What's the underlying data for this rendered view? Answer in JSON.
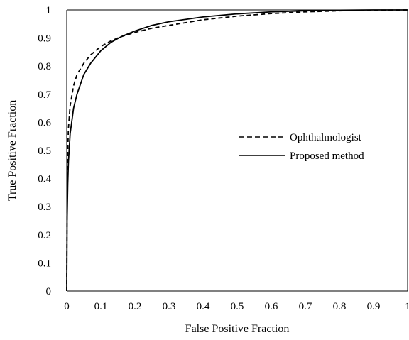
{
  "chart_data": {
    "type": "line",
    "title": "",
    "xlabel": "False Positive Fraction",
    "ylabel": "True Positive Fraction",
    "xlim": [
      0,
      1
    ],
    "ylim": [
      0,
      1
    ],
    "xticks": [
      "0",
      "0.1",
      "0.2",
      "0.3",
      "0.4",
      "0.5",
      "0.6",
      "0.7",
      "0.8",
      "0.9",
      "1"
    ],
    "yticks": [
      "0",
      "0.1",
      "0.2",
      "0.3",
      "0.4",
      "0.5",
      "0.6",
      "0.7",
      "0.8",
      "0.9",
      "1"
    ],
    "grid": false,
    "legend_position": "center-right",
    "series": [
      {
        "name": "Ophthalmologist",
        "line_style": "dashed",
        "color": "#000000",
        "x": [
          0,
          0.001,
          0.003,
          0.005,
          0.01,
          0.02,
          0.03,
          0.05,
          0.07,
          0.1,
          0.13,
          0.16,
          0.2,
          0.25,
          0.3,
          0.4,
          0.5,
          0.6,
          0.7,
          0.8,
          0.9,
          1.0
        ],
        "y": [
          0,
          0.35,
          0.5,
          0.58,
          0.66,
          0.73,
          0.77,
          0.81,
          0.84,
          0.87,
          0.89,
          0.905,
          0.92,
          0.935,
          0.945,
          0.965,
          0.978,
          0.987,
          0.993,
          0.997,
          0.999,
          1.0
        ]
      },
      {
        "name": "Proposed method",
        "line_style": "solid",
        "color": "#000000",
        "x": [
          0,
          0.001,
          0.003,
          0.005,
          0.01,
          0.02,
          0.03,
          0.05,
          0.07,
          0.1,
          0.13,
          0.16,
          0.2,
          0.25,
          0.3,
          0.4,
          0.5,
          0.6,
          0.7,
          0.8,
          0.9,
          1.0
        ],
        "y": [
          0,
          0.25,
          0.38,
          0.46,
          0.56,
          0.65,
          0.7,
          0.77,
          0.81,
          0.855,
          0.885,
          0.905,
          0.925,
          0.945,
          0.958,
          0.975,
          0.986,
          0.993,
          0.997,
          0.999,
          1.0,
          1.0
        ]
      }
    ]
  }
}
